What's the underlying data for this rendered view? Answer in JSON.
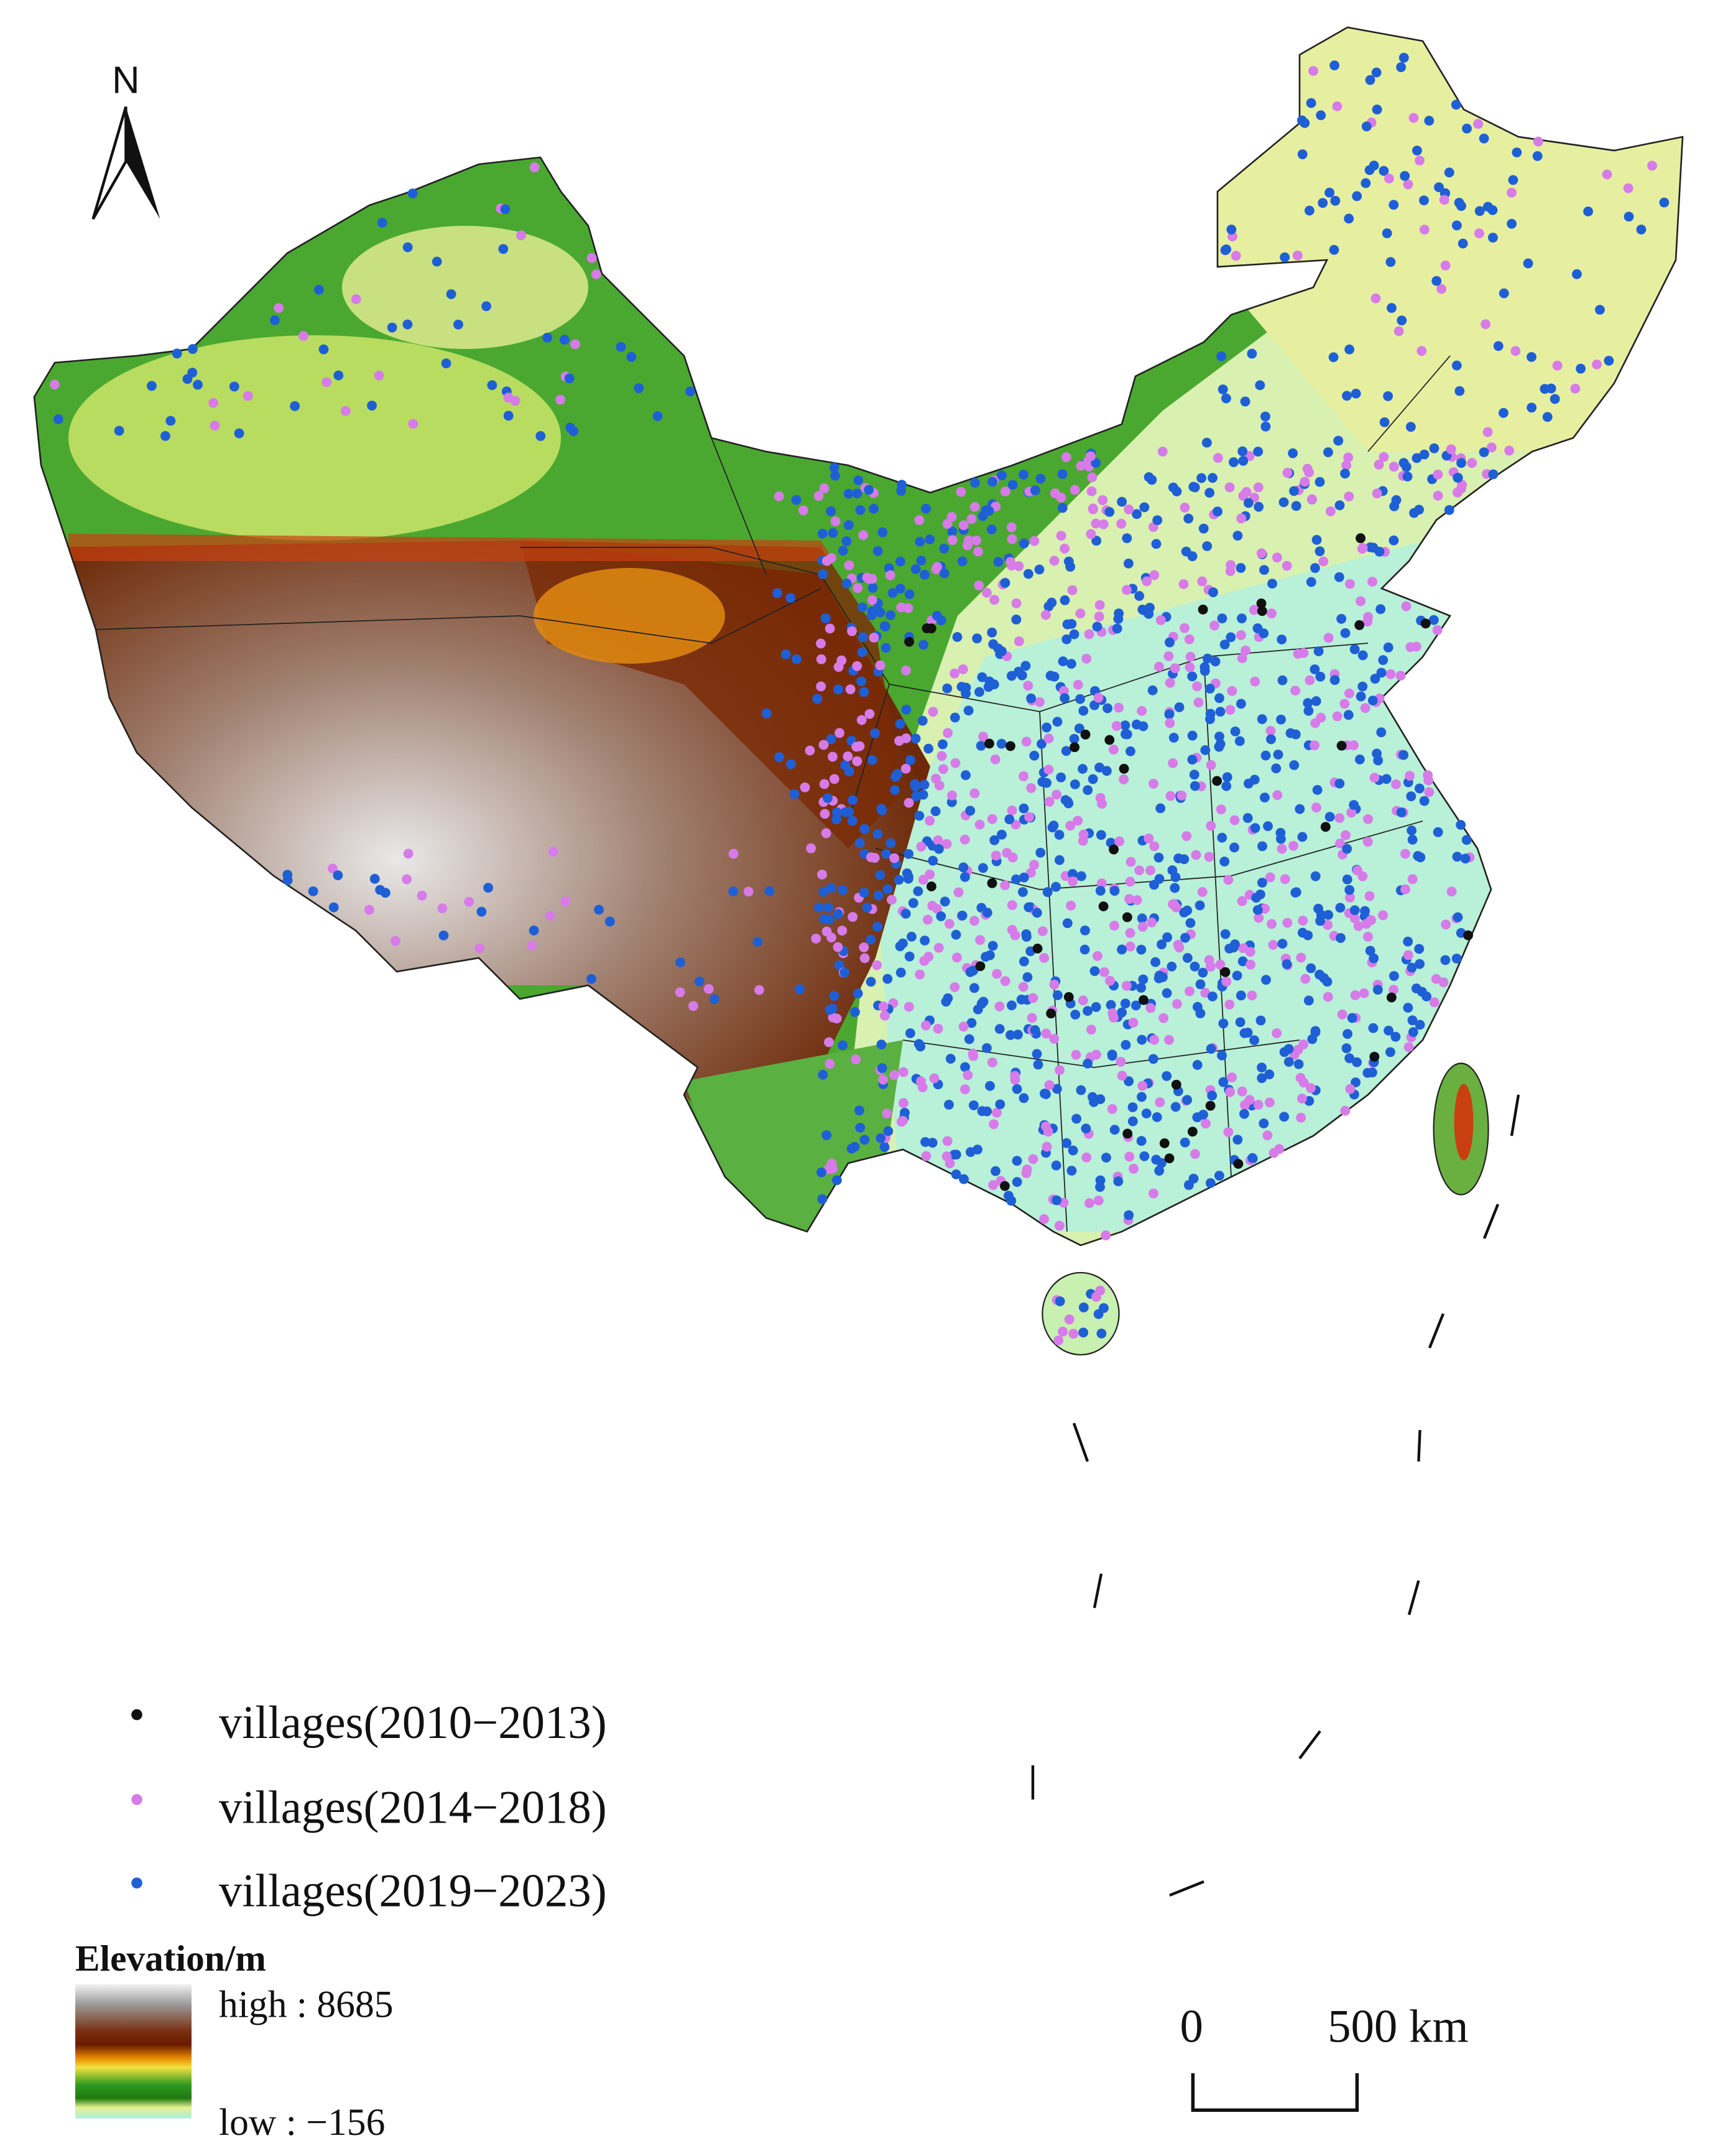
{
  "north_arrow": "N",
  "legend": {
    "items": [
      "villages(2010−2013)",
      "villages(2014−2018)",
      "villages(2019−2023)"
    ]
  },
  "elevation_legend": {
    "title": "Elevation/m",
    "high": "high : 8685",
    "low": "low : −156"
  },
  "scale_bar": {
    "labels": [
      "0",
      "500 km"
    ]
  }
}
